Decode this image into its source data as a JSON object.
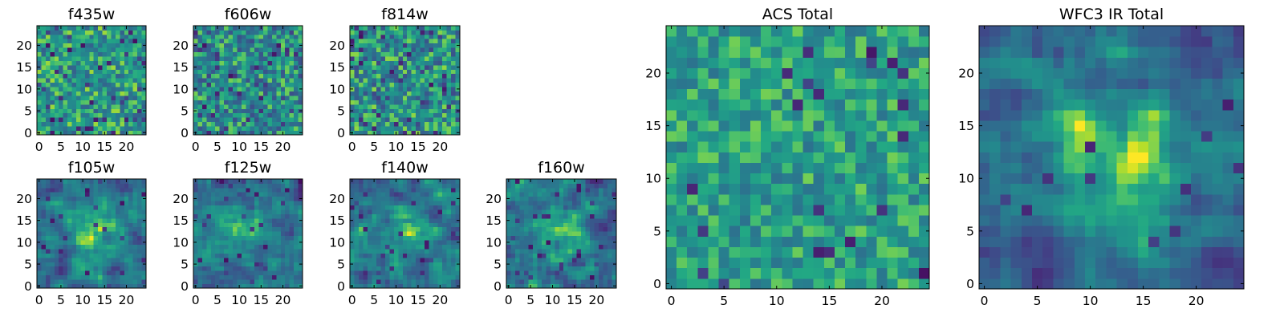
{
  "chart_data": [
    {
      "type": "heatmap",
      "title": "f435w",
      "colormap": "viridis",
      "grid": false,
      "size": [
        25,
        25
      ],
      "xlim": [
        -0.5,
        24.5
      ],
      "ylim": [
        -0.5,
        24.5
      ],
      "xticks": [
        0,
        5,
        10,
        15,
        20
      ],
      "yticks": [
        0,
        5,
        10,
        15,
        20
      ],
      "xticklabels": [
        "0",
        "5",
        "10",
        "15",
        "20"
      ],
      "yticklabels": [
        "0",
        "5",
        "10",
        "15",
        "20"
      ],
      "style": "noise",
      "seed": 11,
      "smooth": 0,
      "base": 0.66,
      "amp": 0.55,
      "speck": 0.05
    },
    {
      "type": "heatmap",
      "title": "f606w",
      "colormap": "viridis",
      "grid": false,
      "size": [
        25,
        25
      ],
      "xlim": [
        -0.5,
        24.5
      ],
      "ylim": [
        -0.5,
        24.5
      ],
      "xticks": [
        0,
        5,
        10,
        15,
        20
      ],
      "yticks": [
        0,
        5,
        10,
        15,
        20
      ],
      "xticklabels": [
        "0",
        "5",
        "10",
        "15",
        "20"
      ],
      "yticklabels": [
        "0",
        "5",
        "10",
        "15",
        "20"
      ],
      "style": "noise",
      "seed": 23,
      "smooth": 0,
      "base": 0.6,
      "amp": 0.6,
      "speck": 0.07
    },
    {
      "type": "heatmap",
      "title": "f814w",
      "colormap": "viridis",
      "grid": false,
      "size": [
        25,
        25
      ],
      "xlim": [
        -0.5,
        24.5
      ],
      "ylim": [
        -0.5,
        24.5
      ],
      "xticks": [
        0,
        5,
        10,
        15,
        20
      ],
      "yticks": [
        0,
        5,
        10,
        15,
        20
      ],
      "xticklabels": [
        "0",
        "5",
        "10",
        "15",
        "20"
      ],
      "yticklabels": [
        "0",
        "5",
        "10",
        "15",
        "20"
      ],
      "style": "noise",
      "seed": 37,
      "smooth": 0,
      "base": 0.62,
      "amp": 0.6,
      "speck": 0.06
    },
    {
      "type": "heatmap",
      "title": "f105w",
      "colormap": "viridis",
      "grid": false,
      "size": [
        25,
        25
      ],
      "xlim": [
        -0.5,
        24.5
      ],
      "ylim": [
        -0.5,
        24.5
      ],
      "xticks": [
        0,
        5,
        10,
        15,
        20
      ],
      "yticks": [
        0,
        5,
        10,
        15,
        20
      ],
      "xticklabels": [
        "0",
        "5",
        "10",
        "15",
        "20"
      ],
      "yticklabels": [
        "0",
        "5",
        "10",
        "15",
        "20"
      ],
      "style": "blob",
      "seed": 41,
      "smooth": 1,
      "base": 0.55,
      "amp": 0.45,
      "peak": 0.38,
      "speck": 0.03
    },
    {
      "type": "heatmap",
      "title": "f125w",
      "colormap": "viridis",
      "grid": false,
      "size": [
        25,
        25
      ],
      "xlim": [
        -0.5,
        24.5
      ],
      "ylim": [
        -0.5,
        24.5
      ],
      "xticks": [
        0,
        5,
        10,
        15,
        20
      ],
      "yticks": [
        0,
        5,
        10,
        15,
        20
      ],
      "xticklabels": [
        "0",
        "5",
        "10",
        "15",
        "20"
      ],
      "yticklabels": [
        "0",
        "5",
        "10",
        "15",
        "20"
      ],
      "style": "blob",
      "seed": 53,
      "smooth": 1,
      "base": 0.55,
      "amp": 0.5,
      "peak": 0.3,
      "speck": 0.04
    },
    {
      "type": "heatmap",
      "title": "f140w",
      "colormap": "viridis",
      "grid": false,
      "size": [
        25,
        25
      ],
      "xlim": [
        -0.5,
        24.5
      ],
      "ylim": [
        -0.5,
        24.5
      ],
      "xticks": [
        0,
        5,
        10,
        15,
        20
      ],
      "yticks": [
        0,
        5,
        10,
        15,
        20
      ],
      "xticklabels": [
        "0",
        "5",
        "10",
        "15",
        "20"
      ],
      "yticklabels": [
        "0",
        "5",
        "10",
        "15",
        "20"
      ],
      "style": "blob",
      "seed": 67,
      "smooth": 1,
      "base": 0.55,
      "amp": 0.5,
      "peak": 0.3,
      "speck": 0.04
    },
    {
      "type": "heatmap",
      "title": "f160w",
      "colormap": "viridis",
      "grid": false,
      "size": [
        25,
        25
      ],
      "xlim": [
        -0.5,
        24.5
      ],
      "ylim": [
        -0.5,
        24.5
      ],
      "xticks": [
        0,
        5,
        10,
        15,
        20
      ],
      "yticks": [
        0,
        5,
        10,
        15,
        20
      ],
      "xticklabels": [
        "0",
        "5",
        "10",
        "15",
        "20"
      ],
      "yticklabels": [
        "0",
        "5",
        "10",
        "15",
        "20"
      ],
      "style": "blob",
      "seed": 79,
      "smooth": 1,
      "base": 0.55,
      "amp": 0.5,
      "peak": 0.3,
      "speck": 0.05
    },
    {
      "type": "heatmap",
      "title": "ACS Total",
      "colormap": "viridis",
      "grid": false,
      "size": [
        25,
        25
      ],
      "xlim": [
        -0.5,
        24.5
      ],
      "ylim": [
        -0.5,
        24.5
      ],
      "xticks": [
        0,
        5,
        10,
        15,
        20
      ],
      "yticks": [
        0,
        5,
        10,
        15,
        20
      ],
      "xticklabels": [
        "0",
        "5",
        "10",
        "15",
        "20"
      ],
      "yticklabels": [
        "0",
        "5",
        "10",
        "15",
        "20"
      ],
      "style": "noise",
      "seed": 89,
      "smooth": 0,
      "base": 0.68,
      "amp": 0.42,
      "speck": 0.035
    },
    {
      "type": "heatmap",
      "title": "WFC3 IR Total",
      "colormap": "viridis",
      "grid": false,
      "size": [
        25,
        25
      ],
      "xlim": [
        -0.5,
        24.5
      ],
      "ylim": [
        -0.5,
        24.5
      ],
      "xticks": [
        0,
        5,
        10,
        15,
        20
      ],
      "yticks": [
        0,
        5,
        10,
        15,
        20
      ],
      "xticklabels": [
        "0",
        "5",
        "10",
        "15",
        "20"
      ],
      "yticklabels": [
        "0",
        "5",
        "10",
        "15",
        "20"
      ],
      "style": "blob",
      "seed": 97,
      "smooth": 1,
      "base": 0.5,
      "amp": 0.42,
      "peak": 0.45,
      "speck": 0.02
    }
  ]
}
